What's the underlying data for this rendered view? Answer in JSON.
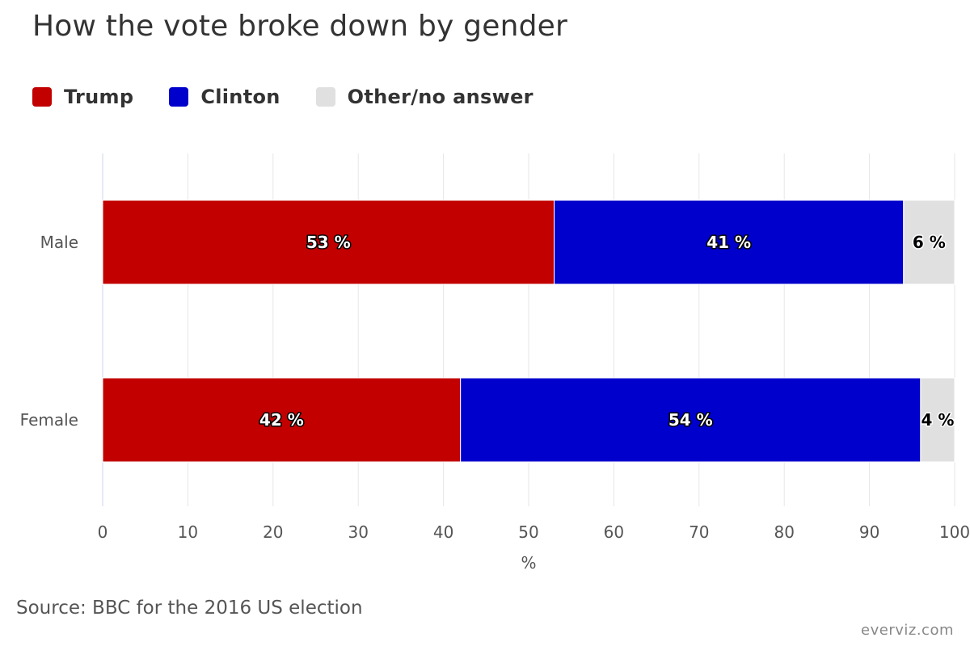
{
  "chart_data": {
    "type": "bar",
    "orientation": "horizontal",
    "stacking": "percent",
    "title": "How the vote broke down by gender",
    "categories": [
      "Male",
      "Female"
    ],
    "series": [
      {
        "name": "Trump",
        "color": "#c20000",
        "values": [
          53,
          42
        ],
        "labels": [
          "53 %",
          "42 %"
        ]
      },
      {
        "name": "Clinton",
        "color": "#0000cc",
        "values": [
          41,
          54
        ],
        "labels": [
          "41 %",
          "54 %"
        ]
      },
      {
        "name": "Other/no answer",
        "color": "#e0e0e0",
        "values": [
          6,
          4
        ],
        "labels": [
          "6 %",
          "4 %"
        ]
      }
    ],
    "xlabel": "%",
    "xlim": [
      0,
      100
    ],
    "xticks": [
      0,
      10,
      20,
      30,
      40,
      50,
      60,
      70,
      80,
      90,
      100
    ],
    "xtick_labels": [
      "0",
      "10",
      "20",
      "30",
      "40",
      "50",
      "60",
      "70",
      "80",
      "90",
      "100"
    ],
    "grid": true,
    "legend": "top-left",
    "source": "Source: BBC for the 2016 US election",
    "credit": "everviz.com"
  }
}
